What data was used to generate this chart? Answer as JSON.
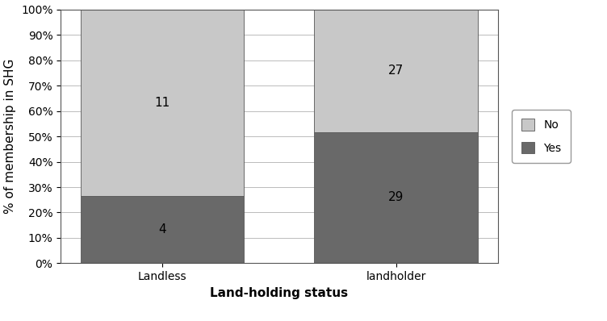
{
  "categories": [
    "Landless",
    "landholder"
  ],
  "yes_values": [
    26.67,
    51.79
  ],
  "no_values": [
    73.33,
    48.21
  ],
  "yes_labels": [
    4,
    29
  ],
  "no_labels": [
    11,
    27
  ],
  "yes_color": "#696969",
  "no_color": "#c8c8c8",
  "bar_width": 0.7,
  "xlabel": "Land-holding status",
  "ylabel": "% of membership in SHG",
  "ylim": [
    0,
    100
  ],
  "yticks": [
    0,
    10,
    20,
    30,
    40,
    50,
    60,
    70,
    80,
    90,
    100
  ],
  "ytick_labels": [
    "0%",
    "10%",
    "20%",
    "30%",
    "40%",
    "50%",
    "60%",
    "70%",
    "80%",
    "90%",
    "100%"
  ],
  "background_color": "#ffffff",
  "label_fontsize": 11,
  "tick_fontsize": 10,
  "axis_label_fontsize": 11
}
